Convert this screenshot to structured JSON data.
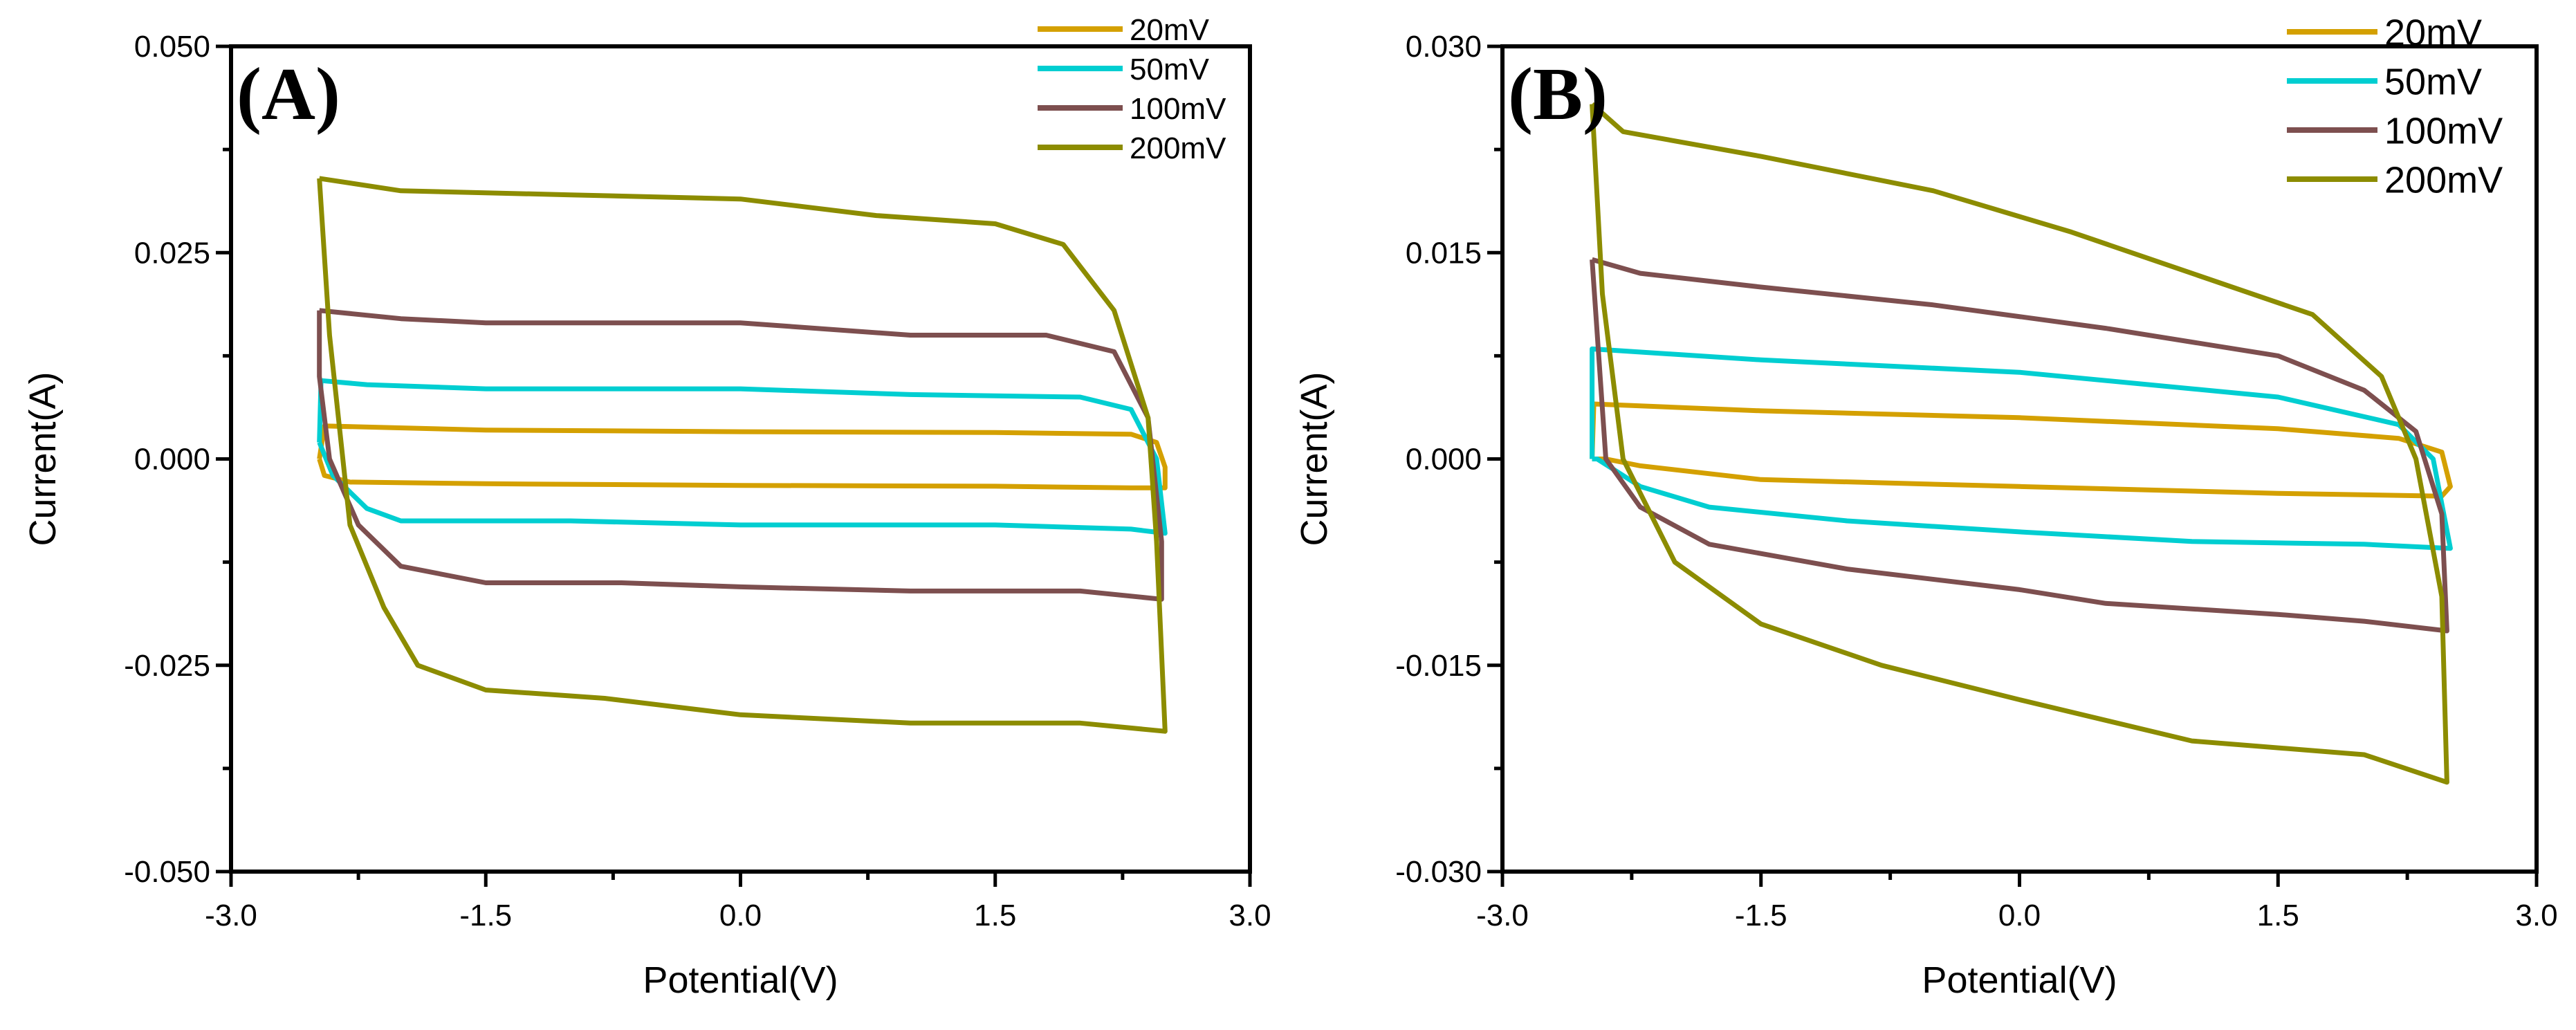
{
  "colors": {
    "20mV": "#D4A000",
    "50mV": "#00CED1",
    "100mV": "#7D4F4F",
    "200mV": "#8C8C00"
  },
  "chart_data": [
    {
      "type": "line",
      "panel_label": "(A)",
      "xlabel": "Potential(V)",
      "ylabel": "Current(A)",
      "xlim": [
        -3.0,
        3.0
      ],
      "ylim": [
        -0.05,
        0.05
      ],
      "xticks": [
        "-3.0",
        "-1.5",
        "0.0",
        "1.5",
        "3.0"
      ],
      "yticks": [
        "-0.050",
        "-0.025",
        "0.000",
        "0.025",
        "0.050"
      ],
      "xtick_values": [
        -3.0,
        -1.5,
        0.0,
        1.5,
        3.0
      ],
      "ytick_values": [
        -0.05,
        -0.025,
        0,
        0.025,
        0.05
      ],
      "legend": "top-right",
      "series": [
        {
          "name": "20mV",
          "points": [
            [
              -2.48,
              0.0
            ],
            [
              -2.45,
              0.004
            ],
            [
              -1.5,
              0.0035
            ],
            [
              0,
              0.0033
            ],
            [
              1.5,
              0.0032
            ],
            [
              2.3,
              0.003
            ],
            [
              2.45,
              0.002
            ],
            [
              2.5,
              -0.001
            ],
            [
              2.5,
              -0.0035
            ],
            [
              2.3,
              -0.0035
            ],
            [
              1.5,
              -0.0033
            ],
            [
              0,
              -0.0032
            ],
            [
              -1.5,
              -0.003
            ],
            [
              -2.3,
              -0.0028
            ],
            [
              -2.45,
              -0.002
            ],
            [
              -2.48,
              0.0
            ]
          ]
        },
        {
          "name": "50mV",
          "points": [
            [
              -2.48,
              0.002
            ],
            [
              -2.47,
              0.0095
            ],
            [
              -2.2,
              0.009
            ],
            [
              -1.5,
              0.0085
            ],
            [
              0,
              0.0085
            ],
            [
              1,
              0.0078
            ],
            [
              2,
              0.0075
            ],
            [
              2.3,
              0.006
            ],
            [
              2.45,
              0.0
            ],
            [
              2.5,
              -0.009
            ],
            [
              2.3,
              -0.0085
            ],
            [
              1.5,
              -0.008
            ],
            [
              0,
              -0.008
            ],
            [
              -1.0,
              -0.0075
            ],
            [
              -2.0,
              -0.0075
            ],
            [
              -2.2,
              -0.006
            ],
            [
              -2.4,
              -0.002
            ],
            [
              -2.48,
              0.002
            ]
          ]
        },
        {
          "name": "100mV",
          "points": [
            [
              -2.48,
              0.018
            ],
            [
              -2.0,
              0.017
            ],
            [
              -1.5,
              0.0165
            ],
            [
              0,
              0.0165
            ],
            [
              1,
              0.015
            ],
            [
              1.8,
              0.015
            ],
            [
              2.2,
              0.013
            ],
            [
              2.4,
              0.005
            ],
            [
              2.48,
              -0.01
            ],
            [
              2.48,
              -0.017
            ],
            [
              2.0,
              -0.016
            ],
            [
              1.0,
              -0.016
            ],
            [
              0,
              -0.0155
            ],
            [
              -0.7,
              -0.015
            ],
            [
              -1.5,
              -0.015
            ],
            [
              -2.0,
              -0.013
            ],
            [
              -2.25,
              -0.008
            ],
            [
              -2.42,
              0.0
            ],
            [
              -2.48,
              0.01
            ],
            [
              -2.48,
              0.018
            ]
          ]
        },
        {
          "name": "200mV",
          "points": [
            [
              -2.48,
              0.034
            ],
            [
              -2.0,
              0.0325
            ],
            [
              -1.0,
              0.032
            ],
            [
              0,
              0.0315
            ],
            [
              0.8,
              0.0295
            ],
            [
              1.5,
              0.0285
            ],
            [
              1.9,
              0.026
            ],
            [
              2.2,
              0.018
            ],
            [
              2.4,
              0.005
            ],
            [
              2.45,
              -0.01
            ],
            [
              2.5,
              -0.033
            ],
            [
              2.0,
              -0.032
            ],
            [
              1.0,
              -0.032
            ],
            [
              0,
              -0.031
            ],
            [
              -0.8,
              -0.029
            ],
            [
              -1.5,
              -0.028
            ],
            [
              -1.9,
              -0.025
            ],
            [
              -2.1,
              -0.018
            ],
            [
              -2.3,
              -0.008
            ],
            [
              -2.42,
              0.015
            ],
            [
              -2.48,
              0.034
            ]
          ]
        }
      ]
    },
    {
      "type": "line",
      "panel_label": "(B)",
      "xlabel": "Potential(V)",
      "ylabel": "Current(A)",
      "xlim": [
        -3.0,
        3.0
      ],
      "ylim": [
        -0.03,
        0.03
      ],
      "xticks": [
        "-3.0",
        "-1.5",
        "0.0",
        "1.5",
        "3.0"
      ],
      "yticks": [
        "-0.030",
        "-0.015",
        "0.000",
        "0.015",
        "0.030"
      ],
      "xtick_values": [
        -3.0,
        -1.5,
        0.0,
        1.5,
        3.0
      ],
      "ytick_values": [
        -0.03,
        -0.015,
        0,
        0.015,
        0.03
      ],
      "legend": "top-right",
      "series": [
        {
          "name": "20mV",
          "points": [
            [
              -2.48,
              0.0
            ],
            [
              -2.47,
              0.004
            ],
            [
              -1.5,
              0.0035
            ],
            [
              0,
              0.003
            ],
            [
              1.5,
              0.0022
            ],
            [
              2.2,
              0.0015
            ],
            [
              2.45,
              0.0005
            ],
            [
              2.5,
              -0.002
            ],
            [
              2.45,
              -0.0027
            ],
            [
              1.5,
              -0.0025
            ],
            [
              0,
              -0.002
            ],
            [
              -1.5,
              -0.0015
            ],
            [
              -2.2,
              -0.0005
            ],
            [
              -2.4,
              0.0
            ],
            [
              -2.48,
              0.0
            ]
          ]
        },
        {
          "name": "50mV",
          "points": [
            [
              -2.48,
              0.0
            ],
            [
              -2.48,
              0.008
            ],
            [
              -1.5,
              0.0072
            ],
            [
              0,
              0.0063
            ],
            [
              1.5,
              0.0045
            ],
            [
              2.2,
              0.0025
            ],
            [
              2.4,
              0.0
            ],
            [
              2.5,
              -0.0065
            ],
            [
              2.0,
              -0.0062
            ],
            [
              1.0,
              -0.006
            ],
            [
              0,
              -0.0053
            ],
            [
              -1.0,
              -0.0045
            ],
            [
              -1.8,
              -0.0035
            ],
            [
              -2.2,
              -0.002
            ],
            [
              -2.45,
              0.0
            ],
            [
              -2.48,
              0.0
            ]
          ]
        },
        {
          "name": "100mV",
          "points": [
            [
              -2.48,
              0.0145
            ],
            [
              -2.2,
              0.0135
            ],
            [
              -1.5,
              0.0125
            ],
            [
              -0.5,
              0.0112
            ],
            [
              0.5,
              0.0095
            ],
            [
              1.5,
              0.0075
            ],
            [
              2.0,
              0.005
            ],
            [
              2.3,
              0.002
            ],
            [
              2.45,
              -0.004
            ],
            [
              2.48,
              -0.0125
            ],
            [
              2.0,
              -0.0118
            ],
            [
              1.5,
              -0.0113
            ],
            [
              0.5,
              -0.0105
            ],
            [
              0,
              -0.0095
            ],
            [
              -1.0,
              -0.008
            ],
            [
              -1.8,
              -0.0062
            ],
            [
              -2.2,
              -0.0035
            ],
            [
              -2.4,
              0.0
            ],
            [
              -2.48,
              0.0145
            ]
          ]
        },
        {
          "name": "200mV",
          "points": [
            [
              -2.48,
              0.0258
            ],
            [
              -2.3,
              0.0238
            ],
            [
              -1.5,
              0.022
            ],
            [
              -0.5,
              0.0195
            ],
            [
              0.3,
              0.0165
            ],
            [
              1.0,
              0.0135
            ],
            [
              1.7,
              0.0105
            ],
            [
              2.1,
              0.006
            ],
            [
              2.3,
              0.0
            ],
            [
              2.45,
              -0.01
            ],
            [
              2.48,
              -0.0235
            ],
            [
              2.0,
              -0.0215
            ],
            [
              1.0,
              -0.0205
            ],
            [
              0,
              -0.0175
            ],
            [
              -0.8,
              -0.015
            ],
            [
              -1.5,
              -0.012
            ],
            [
              -2.0,
              -0.0075
            ],
            [
              -2.3,
              0.0
            ],
            [
              -2.42,
              0.012
            ],
            [
              -2.48,
              0.0258
            ]
          ]
        }
      ]
    }
  ]
}
